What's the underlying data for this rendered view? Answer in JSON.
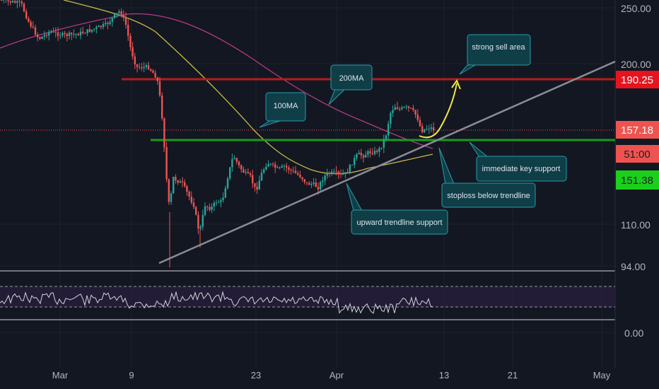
{
  "chart_data": {
    "type": "candlestick",
    "x_ticks": [
      "Mar",
      "9",
      "23",
      "Apr",
      "13",
      "21",
      "May"
    ],
    "y_ticks": [
      "250.00",
      "200.00",
      "110.00",
      "94.00"
    ],
    "rsi_ticks": [
      "0.00"
    ],
    "price_tags": [
      {
        "label": "190.25",
        "bg": "#e5141e",
        "fg": "#ffffff"
      },
      {
        "label": "157.18",
        "bg": "#ef5350",
        "fg": "#ffffff"
      },
      {
        "label": "51:00",
        "bg": "#ef5350",
        "fg": "#1b1e27"
      },
      {
        "label": "151.38",
        "bg": "#1bd01b",
        "fg": "#1b1e27"
      }
    ],
    "annotations": [
      {
        "id": "sell",
        "text": "strong sell area"
      },
      {
        "id": "ma200",
        "text": "200MA"
      },
      {
        "id": "ma100",
        "text": "100MA"
      },
      {
        "id": "key",
        "text": "immediate key support"
      },
      {
        "id": "stop",
        "text": "stoploss below trendline"
      },
      {
        "id": "trend",
        "text": "upward trendline support"
      }
    ],
    "colors": {
      "background": "#131722",
      "up": "#26a69a",
      "down": "#ef5350",
      "ma100": "#c9b84a",
      "ma200": "#b33b83",
      "resistance": "#b71c1c",
      "support": "#1a9c1a",
      "trendline": "#8a8d96",
      "rsi": "#d1d4dc",
      "annotation_bg": "#0f3e47",
      "annotation_border": "#2a9aa8",
      "arrow": "#f5e642"
    }
  }
}
